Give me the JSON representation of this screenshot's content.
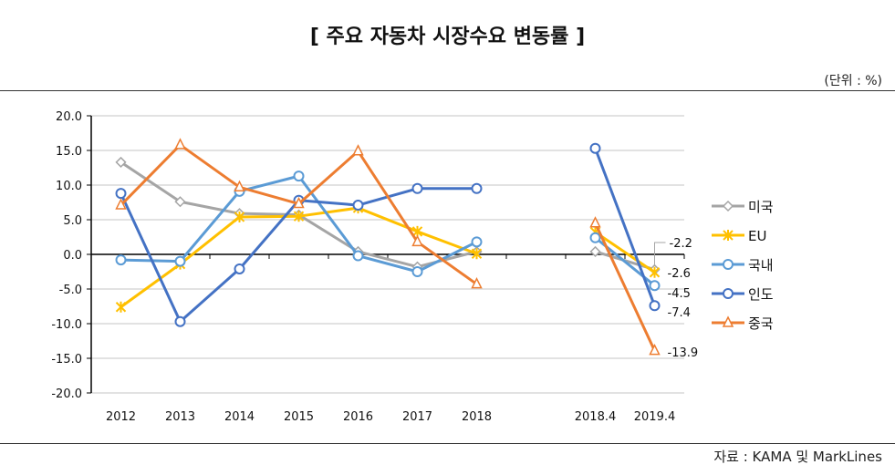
{
  "title": "[ 주요 자동차 시장수요 변동률 ]",
  "unit": "(단위 : %)",
  "source": "자료 : KAMA 및 MarkLines",
  "chart_data": {
    "type": "line",
    "title": "",
    "xlabel": "",
    "ylabel": "",
    "ylim": [
      -20,
      20
    ],
    "yticks": [
      "20.0",
      "15.0",
      "10.0",
      "5.0",
      "0.0",
      "-5.0",
      "-10.0",
      "-15.0",
      "-20.0"
    ],
    "categories": [
      "2012",
      "2013",
      "2014",
      "2015",
      "2016",
      "2017",
      "2018",
      "",
      "2018.4",
      "2019.4"
    ],
    "grid": true,
    "legend": "right",
    "series": [
      {
        "name": "미국",
        "color": "#a5a5a5",
        "marker": "diamond",
        "values": [
          13.3,
          7.6,
          5.9,
          5.7,
          0.4,
          -1.8,
          0.4,
          null,
          0.4,
          -2.2
        ],
        "label_last": "-2.2"
      },
      {
        "name": "EU",
        "color": "#ffc000",
        "marker": "star",
        "values": [
          -7.6,
          -1.4,
          5.4,
          5.5,
          6.7,
          3.3,
          0.1,
          null,
          3.2,
          -2.6
        ],
        "label_last": "-2.6"
      },
      {
        "name": "국내",
        "color": "#5b9bd5",
        "marker": "circle",
        "values": [
          -0.8,
          -1.0,
          9.1,
          11.3,
          -0.2,
          -2.5,
          1.8,
          null,
          2.4,
          -4.5
        ],
        "label_last": "-4.5"
      },
      {
        "name": "인도",
        "color": "#4472c4",
        "marker": "circle",
        "values": [
          8.8,
          -9.7,
          -2.1,
          7.8,
          7.1,
          9.5,
          9.5,
          null,
          15.3,
          -7.4
        ],
        "label_last": "-7.4"
      },
      {
        "name": "중국",
        "color": "#ed7d31",
        "marker": "triangle",
        "values": [
          7.1,
          15.8,
          9.7,
          7.3,
          14.9,
          1.8,
          -4.3,
          null,
          4.5,
          -13.9
        ],
        "label_last": "-13.9"
      }
    ]
  }
}
